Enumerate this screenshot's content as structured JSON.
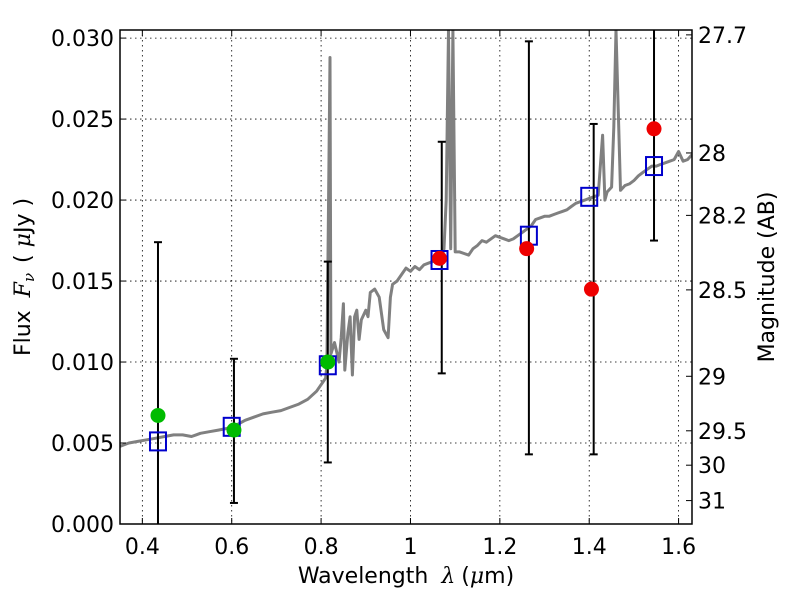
{
  "chart_data": {
    "type": "scatter",
    "title": "",
    "xlabel": "Wavelength  λ (μm)",
    "xlabel_parts": {
      "prefix": "Wavelength ",
      "symbol": "λ",
      "unit_open": "(",
      "unit_symbol": "μ",
      "unit_rest": "m)"
    },
    "ylabel": "Flux  Fν ( μJy )",
    "ylabel_parts": {
      "prefix": "Flux ",
      "symbol": "F",
      "subscript": "ν",
      "unit_open": "( ",
      "unit_symbol": "μ",
      "unit_rest": "Jy )"
    },
    "y2label": "Magnitude (AB)",
    "xlim": [
      0.35,
      1.63
    ],
    "ylim": [
      0.0,
      0.0305
    ],
    "grid": true,
    "grid_style": "dotted",
    "x_ticks": [
      {
        "value": 0.4,
        "label": "0.4"
      },
      {
        "value": 0.6,
        "label": "0.6"
      },
      {
        "value": 0.8,
        "label": "0.8"
      },
      {
        "value": 1.0,
        "label": "1"
      },
      {
        "value": 1.2,
        "label": "1.2"
      },
      {
        "value": 1.4,
        "label": "1.4"
      },
      {
        "value": 1.6,
        "label": "1.6"
      }
    ],
    "y_ticks": [
      {
        "value": 0.0,
        "label": "0.000"
      },
      {
        "value": 0.005,
        "label": "0.005"
      },
      {
        "value": 0.01,
        "label": "0.010"
      },
      {
        "value": 0.015,
        "label": "0.015"
      },
      {
        "value": 0.02,
        "label": "0.020"
      },
      {
        "value": 0.025,
        "label": "0.025"
      },
      {
        "value": 0.03,
        "label": "0.030"
      }
    ],
    "y2_ticks": [
      {
        "mag": 27.7,
        "label": "27.7"
      },
      {
        "mag": 28.0,
        "label": "28"
      },
      {
        "mag": 28.2,
        "label": "28.2"
      },
      {
        "mag": 28.5,
        "label": "28.5"
      },
      {
        "mag": 29.0,
        "label": "29"
      },
      {
        "mag": 29.5,
        "label": "29.5"
      },
      {
        "mag": 30.0,
        "label": "30"
      },
      {
        "mag": 31.0,
        "label": "31"
      }
    ],
    "y2_flux_zero_point_mag": 23.9,
    "series": [
      {
        "kind": "line",
        "color": "#808080",
        "points": [
          [
            0.35,
            0.0048
          ],
          [
            0.37,
            0.005
          ],
          [
            0.39,
            0.0051
          ],
          [
            0.41,
            0.0052
          ],
          [
            0.43,
            0.0053
          ],
          [
            0.45,
            0.0054
          ],
          [
            0.47,
            0.0055
          ],
          [
            0.49,
            0.0055
          ],
          [
            0.51,
            0.0054
          ],
          [
            0.52,
            0.0055
          ],
          [
            0.53,
            0.0056
          ],
          [
            0.55,
            0.0057
          ],
          [
            0.57,
            0.0058
          ],
          [
            0.59,
            0.0059
          ],
          [
            0.61,
            0.0061
          ],
          [
            0.63,
            0.0064
          ],
          [
            0.65,
            0.0066
          ],
          [
            0.67,
            0.0068
          ],
          [
            0.69,
            0.0069
          ],
          [
            0.71,
            0.007
          ],
          [
            0.73,
            0.0072
          ],
          [
            0.75,
            0.0074
          ],
          [
            0.77,
            0.0077
          ],
          [
            0.79,
            0.0082
          ],
          [
            0.8,
            0.0086
          ],
          [
            0.81,
            0.009
          ],
          [
            0.813,
            0.0098
          ],
          [
            0.82,
            0.0288
          ],
          [
            0.822,
            0.0105
          ],
          [
            0.83,
            0.0112
          ],
          [
            0.84,
            0.01
          ],
          [
            0.845,
            0.0115
          ],
          [
            0.85,
            0.0136
          ],
          [
            0.853,
            0.0095
          ],
          [
            0.86,
            0.0118
          ],
          [
            0.865,
            0.0128
          ],
          [
            0.87,
            0.0092
          ],
          [
            0.875,
            0.0128
          ],
          [
            0.88,
            0.0132
          ],
          [
            0.885,
            0.0114
          ],
          [
            0.89,
            0.0126
          ],
          [
            0.9,
            0.0132
          ],
          [
            0.905,
            0.0128
          ],
          [
            0.91,
            0.0143
          ],
          [
            0.92,
            0.0145
          ],
          [
            0.93,
            0.014
          ],
          [
            0.94,
            0.012
          ],
          [
            0.95,
            0.0115
          ],
          [
            0.955,
            0.014
          ],
          [
            0.96,
            0.0148
          ],
          [
            0.97,
            0.015
          ],
          [
            0.98,
            0.0154
          ],
          [
            0.99,
            0.0158
          ],
          [
            1.0,
            0.0156
          ],
          [
            1.01,
            0.0159
          ],
          [
            1.02,
            0.0157
          ],
          [
            1.03,
            0.016
          ],
          [
            1.04,
            0.0161
          ],
          [
            1.05,
            0.0162
          ],
          [
            1.06,
            0.0163
          ],
          [
            1.07,
            0.0164
          ],
          [
            1.075,
            0.017
          ],
          [
            1.08,
            0.02
          ],
          [
            1.085,
            0.0305
          ],
          [
            1.09,
            0.017
          ],
          [
            1.095,
            0.0305
          ],
          [
            1.1,
            0.0168
          ],
          [
            1.11,
            0.0168
          ],
          [
            1.12,
            0.0167
          ],
          [
            1.13,
            0.0166
          ],
          [
            1.14,
            0.017
          ],
          [
            1.15,
            0.0172
          ],
          [
            1.16,
            0.0175
          ],
          [
            1.17,
            0.0174
          ],
          [
            1.18,
            0.0176
          ],
          [
            1.19,
            0.0178
          ],
          [
            1.2,
            0.0177
          ],
          [
            1.21,
            0.0176
          ],
          [
            1.22,
            0.0175
          ],
          [
            1.23,
            0.0176
          ],
          [
            1.24,
            0.0178
          ],
          [
            1.25,
            0.018
          ],
          [
            1.26,
            0.0182
          ],
          [
            1.27,
            0.0184
          ],
          [
            1.28,
            0.0188
          ],
          [
            1.29,
            0.0189
          ],
          [
            1.3,
            0.019
          ],
          [
            1.31,
            0.019
          ],
          [
            1.32,
            0.0191
          ],
          [
            1.33,
            0.0192
          ],
          [
            1.34,
            0.0193
          ],
          [
            1.35,
            0.0194
          ],
          [
            1.36,
            0.0196
          ],
          [
            1.37,
            0.0198
          ],
          [
            1.38,
            0.0199
          ],
          [
            1.39,
            0.02
          ],
          [
            1.4,
            0.0201
          ],
          [
            1.41,
            0.0202
          ],
          [
            1.42,
            0.0203
          ],
          [
            1.43,
            0.024
          ],
          [
            1.435,
            0.02
          ],
          [
            1.44,
            0.0205
          ],
          [
            1.45,
            0.0208
          ],
          [
            1.455,
            0.0245
          ],
          [
            1.46,
            0.0305
          ],
          [
            1.47,
            0.0206
          ],
          [
            1.48,
            0.0209
          ],
          [
            1.49,
            0.021
          ],
          [
            1.5,
            0.0212
          ],
          [
            1.51,
            0.0215
          ],
          [
            1.52,
            0.0217
          ],
          [
            1.53,
            0.0219
          ],
          [
            1.54,
            0.0221
          ],
          [
            1.55,
            0.0221
          ],
          [
            1.56,
            0.0222
          ],
          [
            1.57,
            0.0223
          ],
          [
            1.58,
            0.0224
          ],
          [
            1.59,
            0.0225
          ],
          [
            1.6,
            0.023
          ],
          [
            1.61,
            0.0224
          ],
          [
            1.62,
            0.0225
          ],
          [
            1.63,
            0.0228
          ]
        ]
      },
      {
        "kind": "errorbar",
        "color": "#000000",
        "points": [
          {
            "x": 0.435,
            "ylo": 0.0,
            "yhi": 0.0174
          },
          {
            "x": 0.605,
            "ylo": 0.0013,
            "yhi": 0.0102
          },
          {
            "x": 0.815,
            "ylo": 0.0038,
            "yhi": 0.0162
          },
          {
            "x": 1.07,
            "ylo": 0.0093,
            "yhi": 0.0236
          },
          {
            "x": 1.265,
            "ylo": 0.0043,
            "yhi": 0.0298
          },
          {
            "x": 1.41,
            "ylo": 0.0043,
            "yhi": 0.0247
          },
          {
            "x": 1.545,
            "ylo": 0.0175,
            "yhi": 0.0305
          }
        ]
      },
      {
        "kind": "square",
        "color": "#0000cc",
        "points": [
          [
            0.435,
            0.0051
          ],
          [
            0.6,
            0.006
          ],
          [
            0.815,
            0.0098
          ],
          [
            1.065,
            0.0163
          ],
          [
            1.265,
            0.0178
          ],
          [
            1.4,
            0.0202
          ],
          [
            1.545,
            0.0221
          ]
        ]
      },
      {
        "kind": "circle",
        "color": "#00bb00",
        "points": [
          [
            0.435,
            0.0067
          ],
          [
            0.605,
            0.0058
          ],
          [
            0.815,
            0.01
          ]
        ]
      },
      {
        "kind": "circle",
        "color": "#ee0000",
        "points": [
          [
            1.065,
            0.0164
          ],
          [
            1.26,
            0.017
          ],
          [
            1.405,
            0.0145
          ],
          [
            1.545,
            0.0244
          ]
        ]
      }
    ]
  }
}
